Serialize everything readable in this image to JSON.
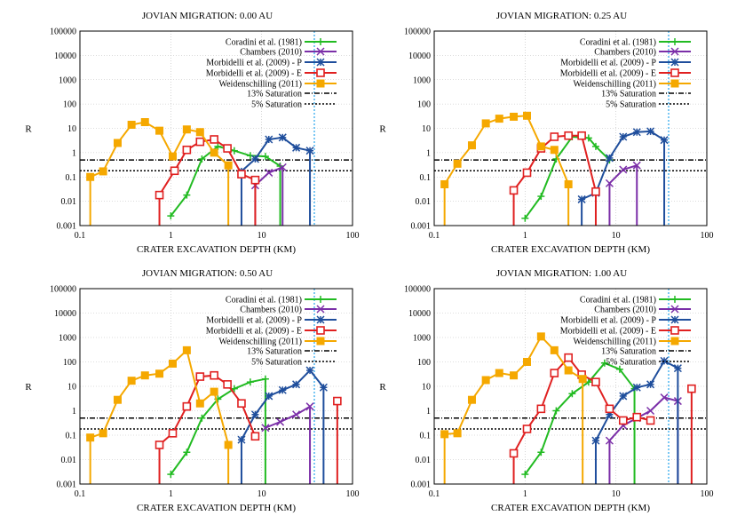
{
  "chart_data": [
    {
      "type": "line",
      "title": "JOVIAN MIGRATION: 0.00 AU",
      "xlabel": "CRATER EXCAVATION DEPTH (KM)",
      "ylabel": "R",
      "xscale": "log",
      "yscale": "log",
      "xlim": [
        0.1,
        100
      ],
      "ylim": [
        0.001,
        100000
      ],
      "xticks": [
        "0.1",
        "1",
        "10",
        "100"
      ],
      "yticks": [
        "0.001",
        "0.01",
        "0.1",
        "1",
        "10",
        "100",
        "1000",
        "10000",
        "100000"
      ],
      "grid": true,
      "legend_position": "top-right",
      "series": [
        {
          "name": "Coradini et al. (1981)",
          "color": "#22bb22",
          "marker": "plus",
          "x": [
            1.0,
            1.5,
            2.2,
            3.3,
            5.0,
            7.5,
            11.0,
            16.0
          ],
          "y": [
            0.0025,
            0.018,
            0.55,
            1.8,
            1.2,
            0.75,
            0.7,
            0.28
          ],
          "drop_last": true
        },
        {
          "name": "Chambers (2010)",
          "color": "#7b2fa8",
          "marker": "x",
          "x": [
            8.5,
            12.0,
            17.0
          ],
          "y": [
            0.045,
            0.15,
            0.25
          ],
          "drop_first": true,
          "drop_last": true
        },
        {
          "name": "Morbidelli et al. (2009) - P",
          "color": "#1f4e9c",
          "marker": "star",
          "x": [
            6.0,
            8.5,
            12.0,
            17.0,
            24.0,
            34.0
          ],
          "y": [
            0.17,
            0.55,
            3.5,
            4.2,
            1.6,
            1.2
          ],
          "drop_first": true,
          "drop_last": true
        },
        {
          "name": "Morbidelli et al. (2009) - E",
          "color": "#e02020",
          "marker": "square",
          "x": [
            0.75,
            1.1,
            1.5,
            2.1,
            3.0,
            4.2,
            6.0,
            8.5
          ],
          "y": [
            0.018,
            0.18,
            1.3,
            2.8,
            3.5,
            1.5,
            0.13,
            0.075
          ],
          "drop_first": true,
          "drop_last": true
        },
        {
          "name": "Weidenschilling (2011)",
          "color": "#f5a800",
          "marker": "filledsquare",
          "x": [
            0.13,
            0.18,
            0.26,
            0.37,
            0.52,
            0.75,
            1.05,
            1.5,
            2.1,
            3.0,
            4.3
          ],
          "y": [
            0.1,
            0.17,
            2.5,
            14.0,
            18.0,
            8.0,
            0.7,
            9.0,
            7.0,
            1.0,
            0.3
          ],
          "drop_first": true,
          "drop_last": true
        }
      ],
      "saturation": [
        {
          "name": "13% Saturation",
          "y": 0.5,
          "style": "dashdot"
        },
        {
          "name": "5% Saturation",
          "y": 0.18,
          "style": "dotted"
        }
      ],
      "vertical_line": {
        "x": 38,
        "color": "#33aaee"
      }
    },
    {
      "type": "line",
      "title": "JOVIAN MIGRATION: 0.25 AU",
      "xlabel": "CRATER EXCAVATION DEPTH (KM)",
      "ylabel": "R",
      "xscale": "log",
      "yscale": "log",
      "xlim": [
        0.1,
        100
      ],
      "ylim": [
        0.001,
        100000
      ],
      "xticks": [
        "0.1",
        "1",
        "10",
        "100"
      ],
      "yticks": [
        "0.001",
        "0.01",
        "0.1",
        "1",
        "10",
        "100",
        "1000",
        "10000",
        "100000"
      ],
      "grid": true,
      "legend_position": "top-right",
      "series": [
        {
          "name": "Coradini et al. (1981)",
          "color": "#22bb22",
          "marker": "plus",
          "x": [
            1.0,
            1.5,
            2.2,
            3.3,
            5.0,
            6.0,
            8.5
          ],
          "y": [
            0.002,
            0.016,
            0.55,
            4.5,
            4.0,
            1.8,
            0.5
          ]
        },
        {
          "name": "Chambers (2010)",
          "color": "#7b2fa8",
          "marker": "x",
          "x": [
            8.5,
            12.0,
            17.0
          ],
          "y": [
            0.055,
            0.2,
            0.3
          ],
          "drop_first": true,
          "drop_last": true
        },
        {
          "name": "Morbidelli et al. (2009) - P",
          "color": "#1f4e9c",
          "marker": "star",
          "x": [
            4.2,
            6.0,
            8.5,
            12.0,
            17.0,
            24.0,
            34.0
          ],
          "y": [
            0.012,
            0.022,
            0.6,
            4.5,
            7.0,
            7.5,
            3.3
          ],
          "drop_first": true,
          "drop_last": true
        },
        {
          "name": "Morbidelli et al. (2009) - E",
          "color": "#e02020",
          "marker": "square",
          "x": [
            0.75,
            1.05,
            1.5,
            2.1,
            3.0,
            4.2,
            6.0
          ],
          "y": [
            0.028,
            0.15,
            1.5,
            4.5,
            5.0,
            5.0,
            0.025
          ],
          "drop_first": true,
          "drop_last": true
        },
        {
          "name": "Weidenschilling (2011)",
          "color": "#f5a800",
          "marker": "filledsquare",
          "x": [
            0.13,
            0.18,
            0.26,
            0.37,
            0.52,
            0.75,
            1.05,
            1.5,
            2.1,
            3.0
          ],
          "y": [
            0.05,
            0.35,
            2.0,
            16.0,
            25.0,
            30.0,
            33.0,
            1.8,
            1.3,
            0.05
          ],
          "drop_first": true,
          "drop_last": true
        }
      ],
      "saturation": [
        {
          "name": "13% Saturation",
          "y": 0.5,
          "style": "dashdot"
        },
        {
          "name": "5% Saturation",
          "y": 0.18,
          "style": "dotted"
        }
      ],
      "vertical_line": {
        "x": 38,
        "color": "#33aaee"
      }
    },
    {
      "type": "line",
      "title": "JOVIAN MIGRATION: 0.50 AU",
      "xlabel": "CRATER EXCAVATION DEPTH (KM)",
      "ylabel": "R",
      "xscale": "log",
      "yscale": "log",
      "xlim": [
        0.1,
        100
      ],
      "ylim": [
        0.001,
        100000
      ],
      "xticks": [
        "0.1",
        "1",
        "10",
        "100"
      ],
      "yticks": [
        "0.001",
        "0.01",
        "0.1",
        "1",
        "10",
        "100",
        "1000",
        "10000",
        "100000"
      ],
      "grid": true,
      "legend_position": "top-right",
      "series": [
        {
          "name": "Coradini et al. (1981)",
          "color": "#22bb22",
          "marker": "plus",
          "x": [
            1.0,
            1.5,
            2.2,
            3.3,
            5.0,
            7.5,
            11.0
          ],
          "y": [
            0.0025,
            0.02,
            0.5,
            3.0,
            8.0,
            15.0,
            20.0
          ],
          "drop_last": true
        },
        {
          "name": "Chambers (2010)",
          "color": "#7b2fa8",
          "marker": "x",
          "x": [
            11.0,
            16.0,
            24.0,
            34.0
          ],
          "y": [
            0.2,
            0.35,
            0.7,
            1.5
          ],
          "drop_last": true
        },
        {
          "name": "Morbidelli et al. (2009) - P",
          "color": "#1f4e9c",
          "marker": "star",
          "x": [
            6.0,
            8.5,
            12.0,
            17.0,
            24.0,
            34.0,
            48.0
          ],
          "y": [
            0.065,
            0.7,
            4.0,
            7.0,
            12.0,
            45.0,
            9.0
          ],
          "drop_first": true,
          "drop_last": true
        },
        {
          "name": "Morbidelli et al. (2009) - E",
          "color": "#e02020",
          "marker": "square",
          "x": [
            0.75,
            1.05,
            1.5,
            2.1,
            3.0,
            4.2,
            6.0,
            8.5,
            68.0
          ],
          "y": [
            0.04,
            0.12,
            1.5,
            25.0,
            28.0,
            12.0,
            2.0,
            0.09,
            2.5
          ],
          "drop_first": true,
          "drop_last": true,
          "gap_before_last": true
        },
        {
          "name": "Weidenschilling (2011)",
          "color": "#f5a800",
          "marker": "filledsquare",
          "x": [
            0.13,
            0.18,
            0.26,
            0.37,
            0.52,
            0.75,
            1.05,
            1.5,
            2.1,
            3.0,
            4.3
          ],
          "y": [
            0.08,
            0.12,
            2.8,
            17.0,
            28.0,
            33.0,
            85.0,
            300.0,
            2.0,
            6.0,
            0.04
          ],
          "drop_first": true,
          "drop_last": true
        }
      ],
      "saturation": [
        {
          "name": "13% Saturation",
          "y": 0.5,
          "style": "dashdot"
        },
        {
          "name": "5% Saturation",
          "y": 0.18,
          "style": "dotted"
        }
      ],
      "vertical_line": {
        "x": 38,
        "color": "#33aaee"
      }
    },
    {
      "type": "line",
      "title": "JOVIAN MIGRATION: 1.00 AU",
      "xlabel": "CRATER EXCAVATION DEPTH (KM)",
      "ylabel": "R",
      "xscale": "log",
      "yscale": "log",
      "xlim": [
        0.1,
        100
      ],
      "ylim": [
        0.001,
        100000
      ],
      "xticks": [
        "0.1",
        "1",
        "10",
        "100"
      ],
      "yticks": [
        "0.001",
        "0.01",
        "0.1",
        "1",
        "10",
        "100",
        "1000",
        "10000",
        "100000"
      ],
      "grid": true,
      "legend_position": "top-right",
      "series": [
        {
          "name": "Coradini et al. (1981)",
          "color": "#22bb22",
          "marker": "plus",
          "x": [
            1.0,
            1.5,
            2.2,
            3.3,
            5.0,
            7.5,
            11.0,
            16.0
          ],
          "y": [
            0.0025,
            0.02,
            1.0,
            5.0,
            15.0,
            90.0,
            50.0,
            8.0
          ],
          "drop_last": true
        },
        {
          "name": "Chambers (2010)",
          "color": "#7b2fa8",
          "marker": "x",
          "x": [
            8.5,
            12.0,
            17.0,
            24.0,
            34.0,
            48.0
          ],
          "y": [
            0.06,
            0.25,
            0.5,
            1.0,
            3.5,
            2.5
          ],
          "drop_first": true,
          "drop_last": true
        },
        {
          "name": "Morbidelli et al. (2009) - P",
          "color": "#1f4e9c",
          "marker": "star",
          "x": [
            6.0,
            8.5,
            12.0,
            17.0,
            24.0,
            34.0,
            48.0
          ],
          "y": [
            0.06,
            0.7,
            4.0,
            9.0,
            12.0,
            110.0,
            55.0
          ],
          "drop_first": true,
          "drop_last": true
        },
        {
          "name": "Morbidelli et al. (2009) - E",
          "color": "#e02020",
          "marker": "square",
          "x": [
            0.75,
            1.05,
            1.5,
            2.1,
            3.0,
            4.2,
            6.0,
            8.5,
            12.0,
            17.0,
            24.0,
            68.0
          ],
          "y": [
            0.018,
            0.18,
            1.2,
            35.0,
            150.0,
            30.0,
            15.0,
            1.2,
            0.4,
            0.55,
            0.4,
            8.0
          ],
          "drop_first": true,
          "drop_last": true,
          "gap_before_last": true
        },
        {
          "name": "Weidenschilling (2011)",
          "color": "#f5a800",
          "marker": "filledsquare",
          "x": [
            0.13,
            0.18,
            0.26,
            0.37,
            0.52,
            0.75,
            1.05,
            1.5,
            2.1,
            3.0,
            4.3
          ],
          "y": [
            0.11,
            0.12,
            2.8,
            18.0,
            35.0,
            28.0,
            100.0,
            1100.0,
            300.0,
            45.0,
            20.0
          ],
          "drop_first": true,
          "drop_last": true
        }
      ],
      "saturation": [
        {
          "name": "13% Saturation",
          "y": 0.5,
          "style": "dashdot"
        },
        {
          "name": "5% Saturation",
          "y": 0.18,
          "style": "dotted"
        }
      ],
      "vertical_line": {
        "x": 38,
        "color": "#33aaee"
      }
    }
  ]
}
